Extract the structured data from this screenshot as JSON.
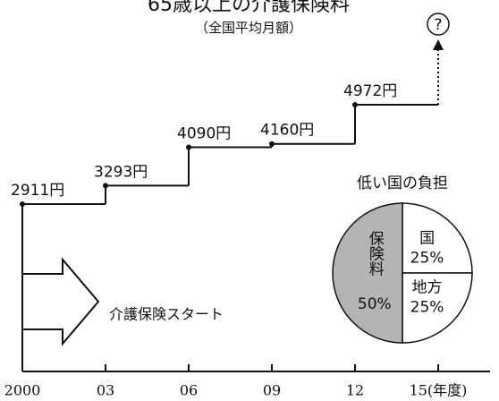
{
  "chart_data": [
    {
      "type": "step",
      "title": "65歳以上の介護保険料",
      "subtitle": "（全国平均月額）",
      "x": [
        2000,
        2003,
        2006,
        2009,
        2012
      ],
      "values": [
        2911,
        3293,
        4090,
        4160,
        4972
      ],
      "value_labels": [
        "2911円",
        "3293円",
        "4090円",
        "4160円",
        "4972円"
      ],
      "xlim": [
        2000,
        2017
      ],
      "xticks": [
        2000,
        {
          "value": 2003,
          "label": "03"
        },
        {
          "value": 2006,
          "label": "06"
        },
        {
          "value": 2009,
          "label": "09"
        },
        {
          "value": 2012,
          "label": "12"
        },
        {
          "value": 2015,
          "label": "15(年度)"
        }
      ],
      "color": "#111111",
      "annotations": [
        "?",
        "介護保険スタート"
      ]
    },
    {
      "type": "pie",
      "title": "低い国の負担",
      "categories": [
        "国",
        "地方",
        "保険料"
      ],
      "values": [
        25,
        25,
        50
      ],
      "value_labels": [
        "25%",
        "25%",
        "50%"
      ],
      "colors": [
        "#ffffff",
        "#ffffff",
        "#b4b4b4"
      ]
    }
  ]
}
